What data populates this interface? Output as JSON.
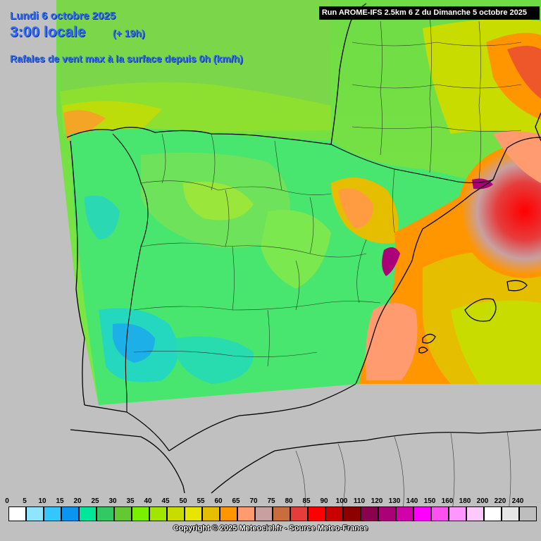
{
  "header": {
    "date": "Lundi 6 octobre 2025",
    "time": "3:00 locale",
    "lead": "(+ 19h)",
    "parameter": "Rafales de vent max à la surface depuis 0h (km/h)"
  },
  "run_label": "Run AROME-IFS 2.5km 6 Z du Dimanche 5 octobre 2025",
  "legend": {
    "labels": [
      "0",
      "5",
      "10",
      "15",
      "20",
      "25",
      "30",
      "35",
      "40",
      "45",
      "50",
      "55",
      "60",
      "65",
      "70",
      "75",
      "80",
      "85",
      "90",
      "100",
      "110",
      "120",
      "130",
      "140",
      "150",
      "160",
      "180",
      "200",
      "220",
      "240"
    ],
    "colors": [
      "#ffffff",
      "#8fe4ff",
      "#32c8ff",
      "#0a96f0",
      "#00e69b",
      "#32c864",
      "#64c832",
      "#78f000",
      "#a0e600",
      "#c8dc00",
      "#e6e600",
      "#e6be00",
      "#ff9600",
      "#ff9b6e",
      "#c8a0a0",
      "#c86e3c",
      "#e63c3c",
      "#ff0000",
      "#c80000",
      "#8c0000",
      "#8c0050",
      "#aa0078",
      "#d200aa",
      "#ff00ff",
      "#ff50f0",
      "#ff96ff",
      "#ffc8ff",
      "#ffffff",
      "#e6e6e6",
      "#bebebe"
    ]
  },
  "copyright": "Copyright © 2025 Meteociel.fr - Source Meteo-France",
  "map": {
    "region": "Espagne / Portugal / Baléares / sud de la France",
    "colors": {
      "background": "#c0c0c0",
      "sea": "#7ee840",
      "land": "#4fe86a",
      "border": "#000000"
    }
  }
}
